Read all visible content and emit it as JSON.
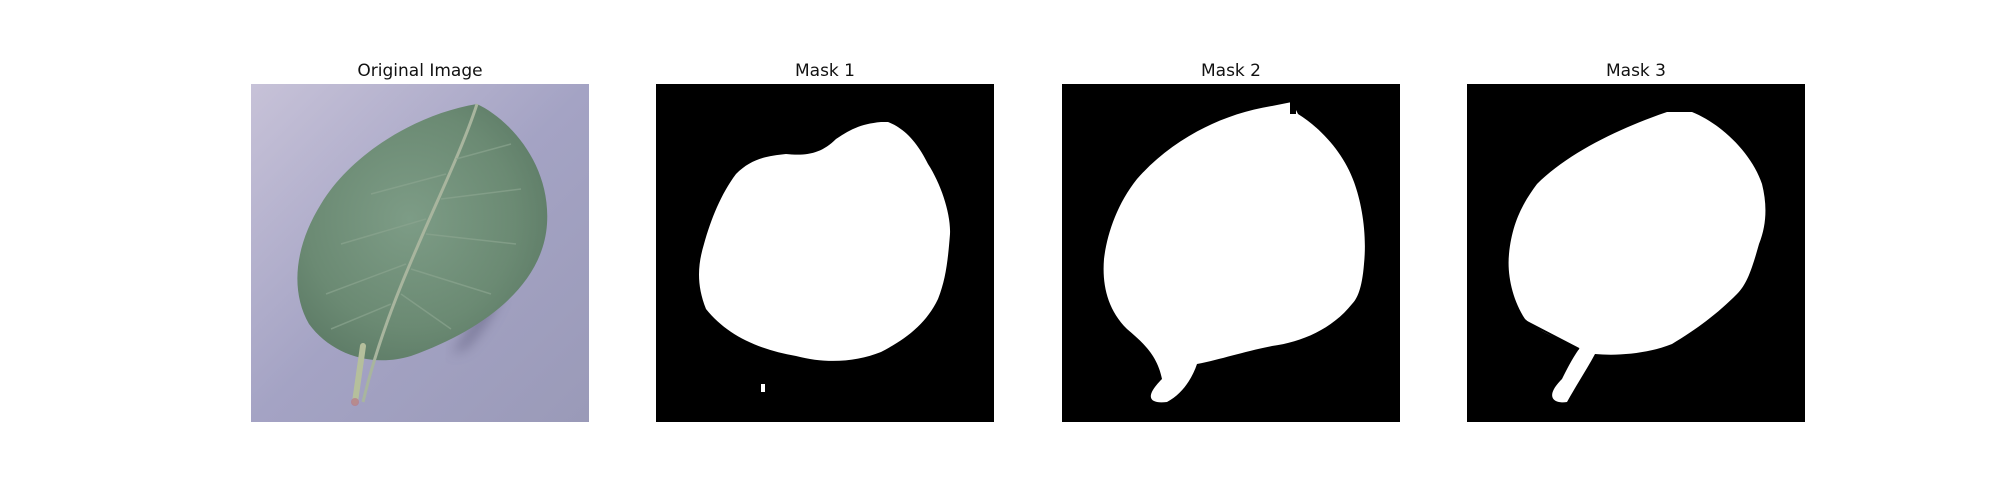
{
  "figure": {
    "panels": [
      {
        "title": "Original Image"
      },
      {
        "title": "Mask 1"
      },
      {
        "title": "Mask 2"
      },
      {
        "title": "Mask 3"
      }
    ]
  },
  "colors": {
    "background": "#ffffff",
    "mask_background": "#000000",
    "mask_foreground": "#ffffff",
    "leaf": "#6e8f76",
    "table_surface": "#a6a6c6"
  }
}
